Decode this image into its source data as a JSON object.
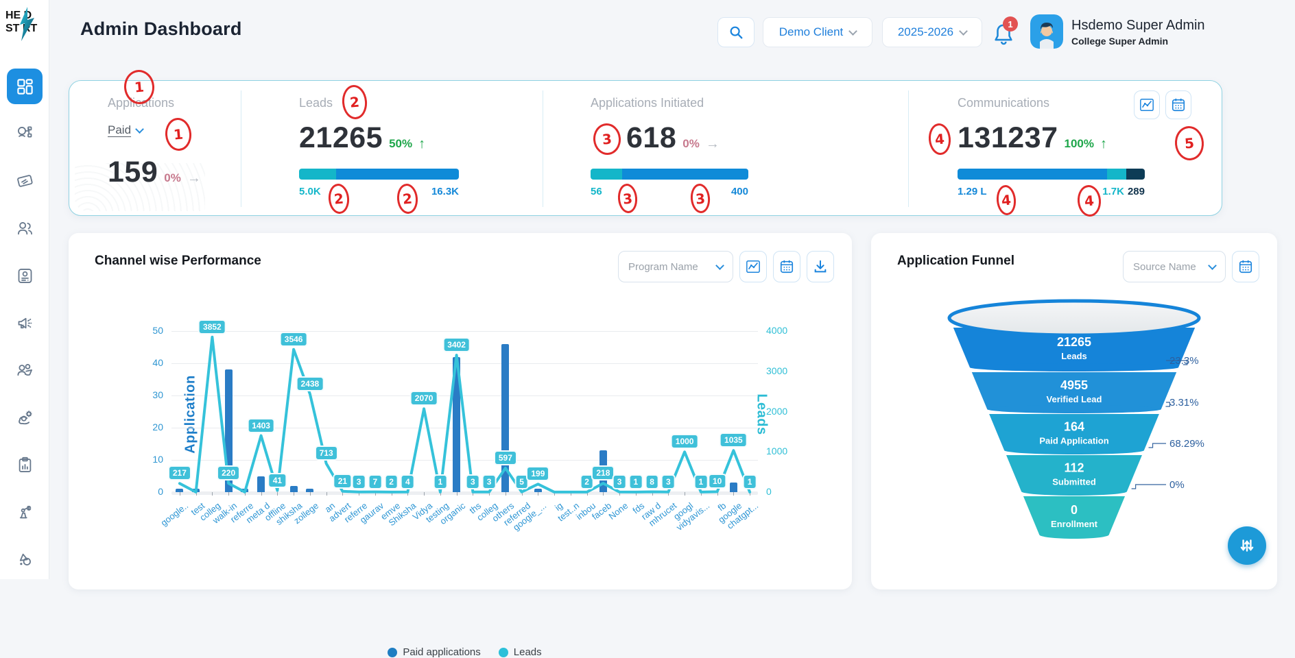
{
  "header": {
    "title": "Admin Dashboard",
    "logo": {
      "top_left": "HE",
      "top_right": "D",
      "bottom_left": "ST",
      "bottom_right": "RT"
    },
    "client_selector": "Demo Client",
    "year_selector": "2025-2026",
    "notifications_badge": "1",
    "user": {
      "name": "Hsdemo Super Admin",
      "role": "College Super Admin"
    }
  },
  "sidebar": {
    "active_index": 0,
    "icons": [
      "dashboard-grid-icon",
      "user-hierarchy-icon",
      "swipe-card-icon",
      "users-icon",
      "id-card-icon",
      "megaphone-icon",
      "people-group-icon",
      "user-gear-icon",
      "clipboard-chart-icon",
      "robot-arm-icon",
      "shapes-icon"
    ]
  },
  "colors": {
    "blue": "#1488d8",
    "teal": "#14b6c9",
    "navy": "#0d3c56",
    "green": "#1ea64a",
    "red_annotation": "#e12b2b",
    "bar_blue": "#2a7cc5",
    "line_teal": "#35c2da"
  },
  "kpi": {
    "cards": [
      {
        "label": "Applications",
        "filter": "Paid",
        "value": "159",
        "delta": "0%",
        "trend": "flat"
      },
      {
        "label": "Leads",
        "value": "21265",
        "delta": "50%",
        "trend": "up",
        "min": "5.0K",
        "max": "16.3K",
        "bar": [
          {
            "color": "teal",
            "pct": 23
          },
          {
            "color": "blue",
            "pct": 77
          }
        ]
      },
      {
        "label": "Applications Initiated",
        "value": "618",
        "delta": "0%",
        "trend": "flat",
        "min": "56",
        "max": "400",
        "bar": [
          {
            "color": "teal",
            "pct": 20
          },
          {
            "color": "blue",
            "pct": 80
          }
        ]
      },
      {
        "label": "Communications",
        "value": "131237",
        "delta": "100%",
        "trend": "up",
        "min": "1.29 L",
        "max": "1.7K",
        "max2": "289",
        "bar": [
          {
            "color": "blue",
            "pct": 80
          },
          {
            "color": "teal",
            "pct": 10
          },
          {
            "color": "navy",
            "pct": 10
          }
        ]
      }
    ]
  },
  "annotations": [
    "1",
    "1",
    "2",
    "2",
    "2",
    "3",
    "3",
    "3",
    "4",
    "4",
    "4",
    "5"
  ],
  "channel": {
    "title": "Channel wise Performance",
    "filter_placeholder": "Program Name",
    "legend": [
      {
        "label": "Paid applications",
        "color": "#1f7ec2"
      },
      {
        "label": "Leads",
        "color": "#2cc0d9"
      }
    ]
  },
  "funnel_panel": {
    "title": "Application Funnel",
    "filter_placeholder": "Source Name"
  },
  "chart_data": [
    {
      "type": "bar",
      "title": "Channel wise Performance",
      "categories": [
        "google..",
        "test",
        "colleg",
        "walk-in",
        "referre",
        "meta d",
        "offline",
        "shiksha",
        "zollege",
        "an",
        "advert",
        "referre",
        "gaurav",
        "emve",
        "Shiksha",
        "Vidya",
        "testing",
        "organic",
        "ths",
        "colleg",
        "others",
        "referred",
        "google_...",
        "ig",
        "test..n",
        "inbou",
        "faceb",
        "None",
        "fds",
        "raw d",
        "mhrucet",
        "googl",
        "vidyavis...",
        "fb",
        "google",
        "chatgpt..."
      ],
      "series": [
        {
          "name": "Paid applications",
          "type": "bar",
          "axis": "left",
          "values": [
            1,
            1,
            0,
            38,
            1,
            5,
            0,
            2,
            1,
            0,
            0,
            0,
            0,
            0,
            0,
            0,
            0,
            42,
            0,
            0,
            46,
            0,
            1,
            0,
            0,
            0,
            13,
            0,
            0,
            0,
            0,
            0,
            0,
            0,
            3,
            0
          ]
        },
        {
          "name": "Leads",
          "type": "line",
          "axis": "right",
          "values": [
            217,
            2,
            3852,
            220,
            3,
            1403,
            41,
            3546,
            2438,
            713,
            21,
            3,
            7,
            2,
            4,
            2070,
            1,
            3402,
            3,
            3,
            597,
            5,
            199,
            2,
            2,
            2,
            218,
            3,
            1,
            8,
            3,
            1000,
            1,
            10,
            1035,
            1
          ]
        }
      ],
      "hidden_point_labels": [
        1,
        4,
        23,
        24
      ],
      "ylabel_left": "Application",
      "ylabel_right": "Leads",
      "ylim_left": [
        0,
        50
      ],
      "ylim_right": [
        0,
        4000
      ],
      "yticks_left": [
        0,
        10,
        20,
        30,
        40,
        50
      ],
      "yticks_right": [
        0,
        1000,
        2000,
        3000,
        4000
      ],
      "grid": true,
      "legend_position": "bottom"
    },
    {
      "type": "funnel",
      "title": "Application Funnel",
      "stages": [
        {
          "value": "21265",
          "label": "Leads",
          "color": "#1584d9",
          "pct_right": "23.3%"
        },
        {
          "value": "4955",
          "label": "Verified Lead",
          "color": "#2191d8",
          "pct_right": "3.31%"
        },
        {
          "value": "164",
          "label": "Paid Application",
          "color": "#1ea3d3",
          "pct_right": "68.29%"
        },
        {
          "value": "112",
          "label": "Submitted",
          "color": "#24b2cb",
          "pct_right": "0%"
        },
        {
          "value": "0",
          "label": "Enrollment",
          "color": "#2cbfc2",
          "pct_right": null
        }
      ]
    }
  ]
}
